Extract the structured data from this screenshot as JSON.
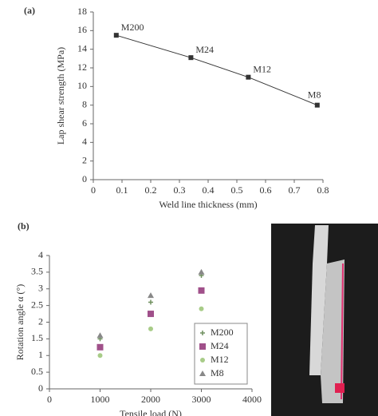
{
  "chart_data": [
    {
      "type": "line",
      "panel": "(a)",
      "x_label": "Weld line thickness (mm)",
      "y_label": "Lap shear strength (MPa)",
      "x": [
        0.08,
        0.34,
        0.54,
        0.78
      ],
      "values": [
        15.5,
        13.1,
        11,
        8
      ],
      "labels": [
        "M200",
        "M24",
        "M12",
        "M8"
      ],
      "color": "#333333",
      "xlim": [
        0,
        0.8
      ],
      "xticks": [
        0,
        0.1,
        0.2,
        0.3,
        0.4,
        0.5,
        0.6,
        0.7,
        0.8
      ],
      "ylim": [
        0,
        18
      ],
      "yticks": [
        0,
        2,
        4,
        6,
        8,
        10,
        12,
        14,
        16,
        18
      ]
    },
    {
      "type": "scatter",
      "panel": "(b)",
      "x_label": "Tensile load (N)",
      "y_label": "Rotation angle α (°)",
      "x": [
        1000,
        2000,
        3000
      ],
      "series": [
        {
          "name": "M200",
          "color": "#6f8f5f",
          "values": [
            1.5,
            2.6,
            3.4
          ]
        },
        {
          "name": "M24",
          "color": "#a0508a",
          "values": [
            1.25,
            2.25,
            2.95
          ]
        },
        {
          "name": "M12",
          "color": "#a8cc88",
          "values": [
            1.0,
            1.8,
            2.4
          ]
        },
        {
          "name": "M8",
          "color": "#888888",
          "values": [
            1.6,
            2.8,
            3.5
          ]
        }
      ],
      "xlim": [
        0,
        4000
      ],
      "xticks": [
        0,
        1000,
        2000,
        3000,
        4000
      ],
      "ylim": [
        0,
        4
      ],
      "yticks": [
        0,
        0.5,
        1,
        1.5,
        2,
        2.5,
        3,
        3.5,
        4
      ],
      "legend": "lower right"
    }
  ]
}
